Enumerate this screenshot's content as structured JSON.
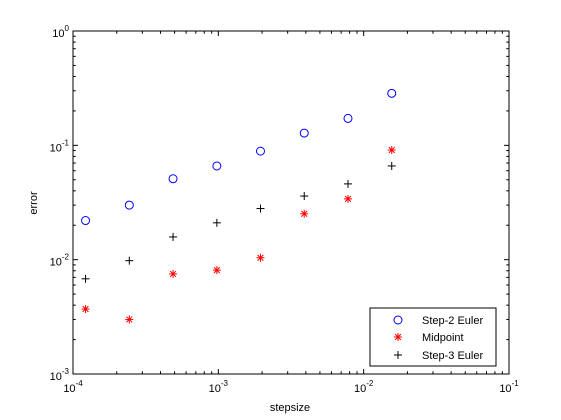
{
  "chart_data": {
    "type": "scatter",
    "xlabel": "stepsize",
    "ylabel": "error",
    "xscale": "log",
    "yscale": "log",
    "xlim": [
      0.0001,
      0.1
    ],
    "ylim": [
      0.001,
      1
    ],
    "x_ticks": [
      {
        "base": "10",
        "exp": "-4"
      },
      {
        "base": "10",
        "exp": "-3"
      },
      {
        "base": "10",
        "exp": "-2"
      },
      {
        "base": "10",
        "exp": "-1"
      }
    ],
    "y_ticks": [
      {
        "base": "10",
        "exp": "-3"
      },
      {
        "base": "10",
        "exp": "-2"
      },
      {
        "base": "10",
        "exp": "-1"
      },
      {
        "base": "10",
        "exp": "0"
      }
    ],
    "legend_position": "bottom-right",
    "series": [
      {
        "name": "Step-2 Euler",
        "marker": "circle",
        "color": "#0000ff",
        "x": [
          0.000122,
          0.000244,
          0.000488,
          0.000977,
          0.00195,
          0.0039,
          0.0078,
          0.0156
        ],
        "y": [
          0.022,
          0.03,
          0.051,
          0.066,
          0.089,
          0.128,
          0.172,
          0.285
        ]
      },
      {
        "name": "Midpoint",
        "marker": "asterisk",
        "color": "#ff0000",
        "x": [
          0.000122,
          0.000244,
          0.000488,
          0.000977,
          0.00195,
          0.0039,
          0.0078,
          0.0156
        ],
        "y": [
          0.0037,
          0.003,
          0.0075,
          0.0081,
          0.0104,
          0.0252,
          0.034,
          0.091
        ]
      },
      {
        "name": "Step-3 Euler",
        "marker": "plus",
        "color": "#000000",
        "x": [
          0.000122,
          0.000244,
          0.000488,
          0.000977,
          0.00195,
          0.0039,
          0.0078,
          0.0156
        ],
        "y": [
          0.0068,
          0.0098,
          0.0158,
          0.021,
          0.028,
          0.036,
          0.046,
          0.066
        ]
      }
    ]
  }
}
